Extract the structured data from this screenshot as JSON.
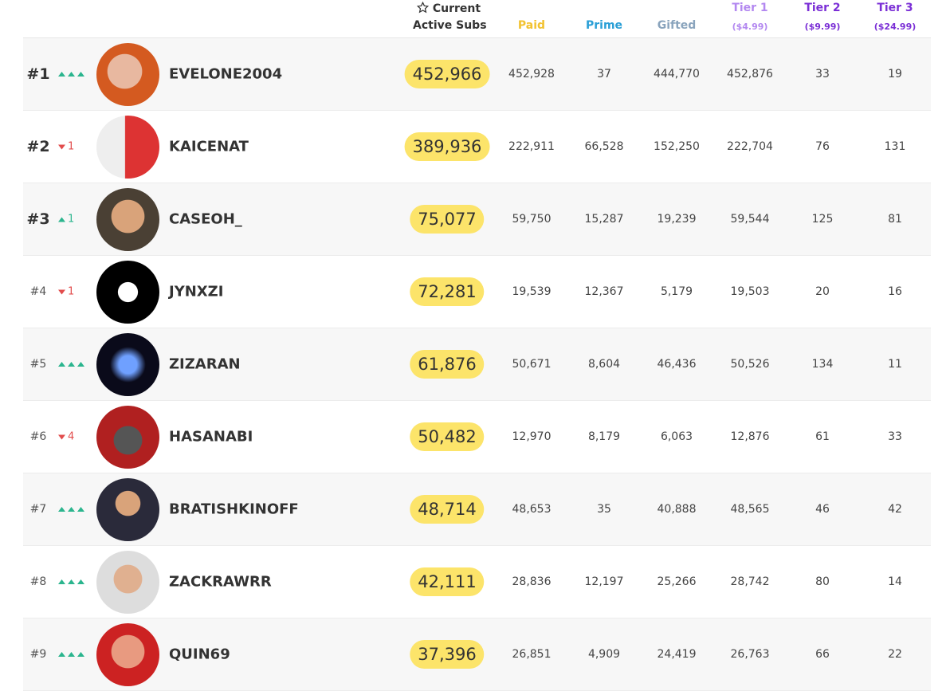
{
  "header": {
    "current": "Current",
    "active_subs": "Active Subs",
    "paid": "Paid",
    "prime": "Prime",
    "gifted": "Gifted",
    "tier1": {
      "label": "Tier 1",
      "price": "($4.99)"
    },
    "tier2": {
      "label": "Tier 2",
      "price": "($9.99)"
    },
    "tier3": {
      "label": "Tier 3",
      "price": "($24.99)"
    }
  },
  "rows": [
    {
      "rank": "#1",
      "trend": "hold",
      "name": "EVELONE2004",
      "subs": "452,966",
      "paid": "452,928",
      "prime": "37",
      "gifted": "444,770",
      "tier1": "452,876",
      "tier2": "33",
      "tier3": "19"
    },
    {
      "rank": "#2",
      "trend": "down",
      "change": "1",
      "name": "KAICENAT",
      "subs": "389,936",
      "paid": "222,911",
      "prime": "66,528",
      "gifted": "152,250",
      "tier1": "222,704",
      "tier2": "76",
      "tier3": "131"
    },
    {
      "rank": "#3",
      "trend": "up",
      "change": "1",
      "name": "CASEOH_",
      "subs": "75,077",
      "paid": "59,750",
      "prime": "15,287",
      "gifted": "19,239",
      "tier1": "59,544",
      "tier2": "125",
      "tier3": "81"
    },
    {
      "rank": "#4",
      "trend": "down",
      "change": "1",
      "name": "JYNXZI",
      "subs": "72,281",
      "paid": "19,539",
      "prime": "12,367",
      "gifted": "5,179",
      "tier1": "19,503",
      "tier2": "20",
      "tier3": "16"
    },
    {
      "rank": "#5",
      "trend": "hold",
      "name": "ZIZARAN",
      "subs": "61,876",
      "paid": "50,671",
      "prime": "8,604",
      "gifted": "46,436",
      "tier1": "50,526",
      "tier2": "134",
      "tier3": "11"
    },
    {
      "rank": "#6",
      "trend": "down",
      "change": "4",
      "name": "HASANABI",
      "subs": "50,482",
      "paid": "12,970",
      "prime": "8,179",
      "gifted": "6,063",
      "tier1": "12,876",
      "tier2": "61",
      "tier3": "33"
    },
    {
      "rank": "#7",
      "trend": "hold",
      "name": "BRATISHKINOFF",
      "subs": "48,714",
      "paid": "48,653",
      "prime": "35",
      "gifted": "40,888",
      "tier1": "48,565",
      "tier2": "46",
      "tier3": "42"
    },
    {
      "rank": "#8",
      "trend": "hold",
      "name": "ZACKRAWRR",
      "subs": "42,111",
      "paid": "28,836",
      "prime": "12,197",
      "gifted": "25,266",
      "tier1": "28,742",
      "tier2": "80",
      "tier3": "14"
    },
    {
      "rank": "#9",
      "trend": "hold",
      "name": "QUIN69",
      "subs": "37,396",
      "paid": "26,851",
      "prime": "4,909",
      "gifted": "24,419",
      "tier1": "26,763",
      "tier2": "66",
      "tier3": "22"
    }
  ]
}
